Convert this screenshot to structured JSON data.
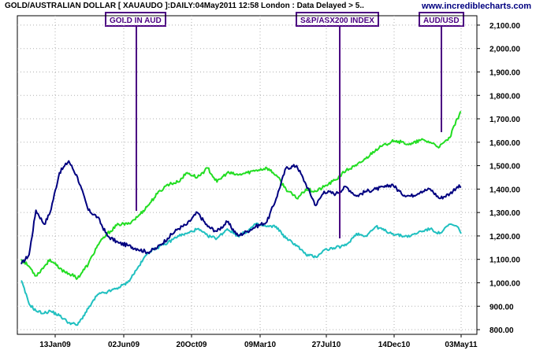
{
  "title": "GOLD/AUSTRALIAN DOLLAR [ XAUAUDO ]:DAILY:04May2011 12:58 London : Data Delayed > 5..",
  "source": "www.incrediblecharts.com",
  "annotations": [
    "GOLD IN AUD",
    "S&P/ASX200 INDEX",
    "AUD/USD"
  ],
  "colors": {
    "gold_in_aud": "#000080",
    "sp_asx200": "#22dd22",
    "aud_usd": "#20c0c0",
    "grid": "#b0b0b0",
    "callout": "#4b0082"
  },
  "chart_data": {
    "type": "line",
    "title": "GOLD/AUSTRALIAN DOLLAR [ XAUAUDO ]:DAILY:04May2011 12:58 London : Data Delayed > 5..",
    "xlabel": "",
    "ylabel": "",
    "x_tick_labels": [
      "13Jan09",
      "02Jun09",
      "20Oct09",
      "09Mar10",
      "27Jul10",
      "14Dec10",
      "03May11"
    ],
    "y_tick_labels": [
      "800.00",
      "900.00",
      "1,000.00",
      "1,100.00",
      "1,200.00",
      "1,300.00",
      "1,400.00",
      "1,500.00",
      "1,600.00",
      "1,700.00",
      "1,800.00",
      "1,900.00",
      "2,000.00",
      "2,100.00"
    ],
    "ylim": [
      780,
      2140
    ],
    "grid": true,
    "legend": "none",
    "x": [
      "2008-11-15",
      "2008-12-01",
      "2008-12-15",
      "2009-01-01",
      "2009-01-13",
      "2009-02-01",
      "2009-02-20",
      "2009-03-10",
      "2009-04-01",
      "2009-04-20",
      "2009-05-10",
      "2009-06-02",
      "2009-06-20",
      "2009-07-10",
      "2009-08-01",
      "2009-08-20",
      "2009-09-10",
      "2009-10-01",
      "2009-10-20",
      "2009-11-10",
      "2009-12-01",
      "2009-12-20",
      "2010-01-10",
      "2010-02-01",
      "2010-02-20",
      "2010-03-09",
      "2010-04-01",
      "2010-04-20",
      "2010-05-10",
      "2010-06-01",
      "2010-06-20",
      "2010-07-10",
      "2010-07-27",
      "2010-08-20",
      "2010-09-10",
      "2010-10-01",
      "2010-10-20",
      "2010-11-10",
      "2010-12-01",
      "2010-12-14",
      "2011-01-01",
      "2011-01-20",
      "2011-02-10",
      "2011-03-01",
      "2011-03-20",
      "2011-04-10",
      "2011-04-25",
      "2011-05-03"
    ],
    "series": [
      {
        "key": "gold_in_aud",
        "values": [
          1080,
          1120,
          1310,
          1250,
          1300,
          1470,
          1520,
          1450,
          1310,
          1280,
          1200,
          1170,
          1160,
          1145,
          1130,
          1150,
          1190,
          1230,
          1250,
          1300,
          1240,
          1220,
          1260,
          1200,
          1220,
          1240,
          1260,
          1360,
          1490,
          1500,
          1420,
          1330,
          1390,
          1380,
          1410,
          1370,
          1390,
          1400,
          1410,
          1420,
          1380,
          1370,
          1390,
          1400,
          1360,
          1380,
          1410,
          1410
        ]
      },
      {
        "key": "sp_asx200",
        "values": [
          1100,
          1070,
          1030,
          1070,
          1100,
          1060,
          1040,
          1020,
          1080,
          1160,
          1210,
          1250,
          1250,
          1280,
          1330,
          1380,
          1420,
          1430,
          1470,
          1450,
          1490,
          1430,
          1470,
          1460,
          1470,
          1480,
          1490,
          1460,
          1400,
          1360,
          1400,
          1390,
          1410,
          1440,
          1480,
          1500,
          1530,
          1570,
          1590,
          1610,
          1600,
          1590,
          1610,
          1600,
          1580,
          1620,
          1700,
          1730
        ]
      },
      {
        "key": "aud_usd",
        "values": [
          1010,
          910,
          880,
          870,
          880,
          860,
          830,
          820,
          890,
          950,
          960,
          980,
          1000,
          1060,
          1130,
          1150,
          1170,
          1200,
          1210,
          1230,
          1200,
          1190,
          1230,
          1200,
          1220,
          1250,
          1240,
          1240,
          1190,
          1160,
          1120,
          1110,
          1140,
          1150,
          1160,
          1210,
          1200,
          1240,
          1220,
          1210,
          1200,
          1200,
          1220,
          1230,
          1210,
          1250,
          1240,
          1210
        ]
      }
    ]
  }
}
